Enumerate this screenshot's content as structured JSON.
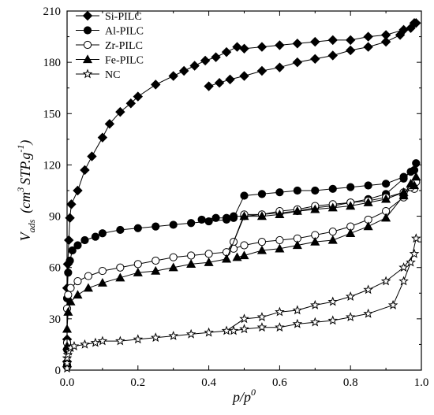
{
  "chart_data": {
    "type": "scatter",
    "xlabel": {
      "main": "p/p",
      "sup": "0"
    },
    "ylabel": {
      "v": "V",
      "sub": "ads",
      "open": "(cm",
      "sup1": "3",
      "mid": "STP.g",
      "sup2": "-1",
      "close": ")"
    },
    "xlim": [
      0.0,
      1.0
    ],
    "ylim": [
      0,
      210
    ],
    "xticks": [
      0.0,
      0.2,
      0.4,
      0.6,
      0.8,
      1.0
    ],
    "xtick_labels": [
      "0.0",
      "0.2",
      "0.4",
      "0.6",
      "0.8",
      "1.0"
    ],
    "yticks": [
      0,
      30,
      60,
      90,
      120,
      150,
      180,
      210
    ],
    "ytick_labels": [
      "0",
      "30",
      "60",
      "90",
      "120",
      "150",
      "180",
      "210"
    ],
    "legend_position": "top-left",
    "series": [
      {
        "name": "Si-PILC",
        "marker": "diamond-filled",
        "adsorption": [
          [
            0.0,
            5
          ],
          [
            0.0,
            18
          ],
          [
            0.0,
            48
          ],
          [
            0.002,
            62
          ],
          [
            0.005,
            76
          ],
          [
            0.008,
            89
          ],
          [
            0.012,
            97
          ],
          [
            0.03,
            105
          ],
          [
            0.05,
            117
          ],
          [
            0.07,
            125
          ],
          [
            0.1,
            136
          ],
          [
            0.12,
            144
          ],
          [
            0.15,
            151
          ],
          [
            0.18,
            156
          ],
          [
            0.2,
            160
          ],
          [
            0.25,
            167
          ],
          [
            0.3,
            172
          ],
          [
            0.33,
            175
          ],
          [
            0.36,
            178
          ],
          [
            0.39,
            181
          ],
          [
            0.42,
            183
          ],
          [
            0.45,
            186
          ],
          [
            0.48,
            189
          ],
          [
            0.5,
            188
          ],
          [
            0.55,
            189
          ],
          [
            0.6,
            190
          ],
          [
            0.65,
            191
          ],
          [
            0.7,
            192
          ],
          [
            0.75,
            193
          ],
          [
            0.8,
            193
          ],
          [
            0.85,
            195
          ],
          [
            0.9,
            196
          ],
          [
            0.95,
            199
          ],
          [
            0.98,
            203
          ]
        ],
        "desorption": [
          [
            0.985,
            203
          ],
          [
            0.97,
            200
          ],
          [
            0.94,
            196
          ],
          [
            0.9,
            192
          ],
          [
            0.85,
            189
          ],
          [
            0.8,
            187
          ],
          [
            0.75,
            184
          ],
          [
            0.7,
            182
          ],
          [
            0.65,
            180
          ],
          [
            0.6,
            177
          ],
          [
            0.55,
            175
          ],
          [
            0.5,
            172
          ],
          [
            0.46,
            170
          ],
          [
            0.43,
            168
          ],
          [
            0.4,
            166
          ]
        ]
      },
      {
        "name": "Al-PILC",
        "marker": "circle-filled",
        "adsorption": [
          [
            0.0,
            2
          ],
          [
            0.0,
            12
          ],
          [
            0.0,
            42
          ],
          [
            0.003,
            57
          ],
          [
            0.008,
            64
          ],
          [
            0.015,
            70
          ],
          [
            0.03,
            73
          ],
          [
            0.05,
            76
          ],
          [
            0.08,
            78
          ],
          [
            0.1,
            80
          ],
          [
            0.15,
            82
          ],
          [
            0.2,
            83
          ],
          [
            0.25,
            84
          ],
          [
            0.3,
            85
          ],
          [
            0.35,
            86
          ],
          [
            0.4,
            87
          ],
          [
            0.45,
            88
          ],
          [
            0.47,
            89
          ],
          [
            0.5,
            102
          ],
          [
            0.55,
            103
          ],
          [
            0.6,
            104
          ],
          [
            0.65,
            105
          ],
          [
            0.7,
            105
          ],
          [
            0.75,
            106
          ],
          [
            0.8,
            107
          ],
          [
            0.85,
            108
          ],
          [
            0.9,
            109
          ],
          [
            0.95,
            113
          ],
          [
            0.98,
            117
          ]
        ],
        "desorption": [
          [
            0.985,
            121
          ],
          [
            0.97,
            116
          ],
          [
            0.95,
            112
          ],
          [
            0.9,
            103
          ],
          [
            0.85,
            100
          ],
          [
            0.8,
            98
          ],
          [
            0.75,
            96
          ],
          [
            0.7,
            95
          ],
          [
            0.65,
            93
          ],
          [
            0.6,
            92
          ],
          [
            0.55,
            91
          ],
          [
            0.5,
            90
          ],
          [
            0.47,
            90
          ],
          [
            0.45,
            89
          ],
          [
            0.42,
            89
          ],
          [
            0.38,
            88
          ]
        ]
      },
      {
        "name": "Zr-PILC",
        "marker": "circle-open",
        "adsorption": [
          [
            0.0,
            3
          ],
          [
            0.0,
            16
          ],
          [
            0.0,
            36
          ],
          [
            0.003,
            44
          ],
          [
            0.01,
            48
          ],
          [
            0.03,
            52
          ],
          [
            0.06,
            55
          ],
          [
            0.1,
            58
          ],
          [
            0.15,
            60
          ],
          [
            0.2,
            62
          ],
          [
            0.25,
            64
          ],
          [
            0.3,
            66
          ],
          [
            0.35,
            67
          ],
          [
            0.4,
            68
          ],
          [
            0.45,
            69
          ],
          [
            0.47,
            75
          ],
          [
            0.5,
            91
          ],
          [
            0.55,
            91
          ],
          [
            0.6,
            93
          ],
          [
            0.65,
            94
          ],
          [
            0.7,
            96
          ],
          [
            0.75,
            97
          ],
          [
            0.8,
            98
          ],
          [
            0.85,
            99
          ],
          [
            0.9,
            101
          ],
          [
            0.95,
            104
          ],
          [
            0.98,
            106
          ]
        ],
        "desorption": [
          [
            0.985,
            110
          ],
          [
            0.97,
            107
          ],
          [
            0.95,
            101
          ],
          [
            0.9,
            93
          ],
          [
            0.85,
            88
          ],
          [
            0.8,
            84
          ],
          [
            0.75,
            81
          ],
          [
            0.7,
            79
          ],
          [
            0.65,
            77
          ],
          [
            0.6,
            76
          ],
          [
            0.55,
            75
          ],
          [
            0.5,
            73
          ],
          [
            0.47,
            71
          ]
        ]
      },
      {
        "name": "Fe-PILC",
        "marker": "triangle-filled",
        "adsorption": [
          [
            0.0,
            4
          ],
          [
            0.0,
            14
          ],
          [
            0.0,
            24
          ],
          [
            0.003,
            34
          ],
          [
            0.01,
            40
          ],
          [
            0.03,
            44
          ],
          [
            0.06,
            48
          ],
          [
            0.1,
            51
          ],
          [
            0.15,
            54
          ],
          [
            0.2,
            57
          ],
          [
            0.25,
            58
          ],
          [
            0.3,
            60
          ],
          [
            0.35,
            62
          ],
          [
            0.4,
            63
          ],
          [
            0.45,
            65
          ],
          [
            0.5,
            90
          ],
          [
            0.55,
            90
          ],
          [
            0.6,
            91
          ],
          [
            0.65,
            93
          ],
          [
            0.7,
            94
          ],
          [
            0.75,
            95
          ],
          [
            0.8,
            96
          ],
          [
            0.85,
            98
          ],
          [
            0.9,
            100
          ],
          [
            0.95,
            104
          ],
          [
            0.98,
            108
          ]
        ],
        "desorption": [
          [
            0.985,
            113
          ],
          [
            0.97,
            109
          ],
          [
            0.95,
            102
          ],
          [
            0.9,
            89
          ],
          [
            0.85,
            84
          ],
          [
            0.8,
            80
          ],
          [
            0.75,
            76
          ],
          [
            0.7,
            75
          ],
          [
            0.65,
            73
          ],
          [
            0.6,
            71
          ],
          [
            0.55,
            70
          ],
          [
            0.5,
            67
          ],
          [
            0.48,
            66
          ]
        ]
      },
      {
        "name": "NC",
        "marker": "star-open",
        "adsorption": [
          [
            0.0,
            1
          ],
          [
            0.0,
            4
          ],
          [
            0.0,
            7
          ],
          [
            0.002,
            9
          ],
          [
            0.005,
            11
          ],
          [
            0.01,
            13
          ],
          [
            0.02,
            14
          ],
          [
            0.05,
            15
          ],
          [
            0.08,
            16
          ],
          [
            0.1,
            17
          ],
          [
            0.15,
            17
          ],
          [
            0.2,
            18
          ],
          [
            0.25,
            19
          ],
          [
            0.3,
            20
          ],
          [
            0.35,
            21
          ],
          [
            0.4,
            22
          ],
          [
            0.45,
            23
          ],
          [
            0.5,
            30
          ],
          [
            0.55,
            31
          ],
          [
            0.6,
            34
          ],
          [
            0.65,
            35
          ],
          [
            0.7,
            38
          ],
          [
            0.75,
            40
          ],
          [
            0.8,
            43
          ],
          [
            0.85,
            47
          ],
          [
            0.9,
            52
          ],
          [
            0.95,
            60
          ],
          [
            0.98,
            68
          ]
        ],
        "desorption": [
          [
            0.985,
            77
          ],
          [
            0.97,
            63
          ],
          [
            0.95,
            52
          ],
          [
            0.92,
            38
          ],
          [
            0.85,
            33
          ],
          [
            0.8,
            31
          ],
          [
            0.75,
            29
          ],
          [
            0.7,
            28
          ],
          [
            0.65,
            27
          ],
          [
            0.6,
            25
          ],
          [
            0.55,
            25
          ],
          [
            0.5,
            24
          ],
          [
            0.47,
            23
          ]
        ]
      }
    ]
  }
}
